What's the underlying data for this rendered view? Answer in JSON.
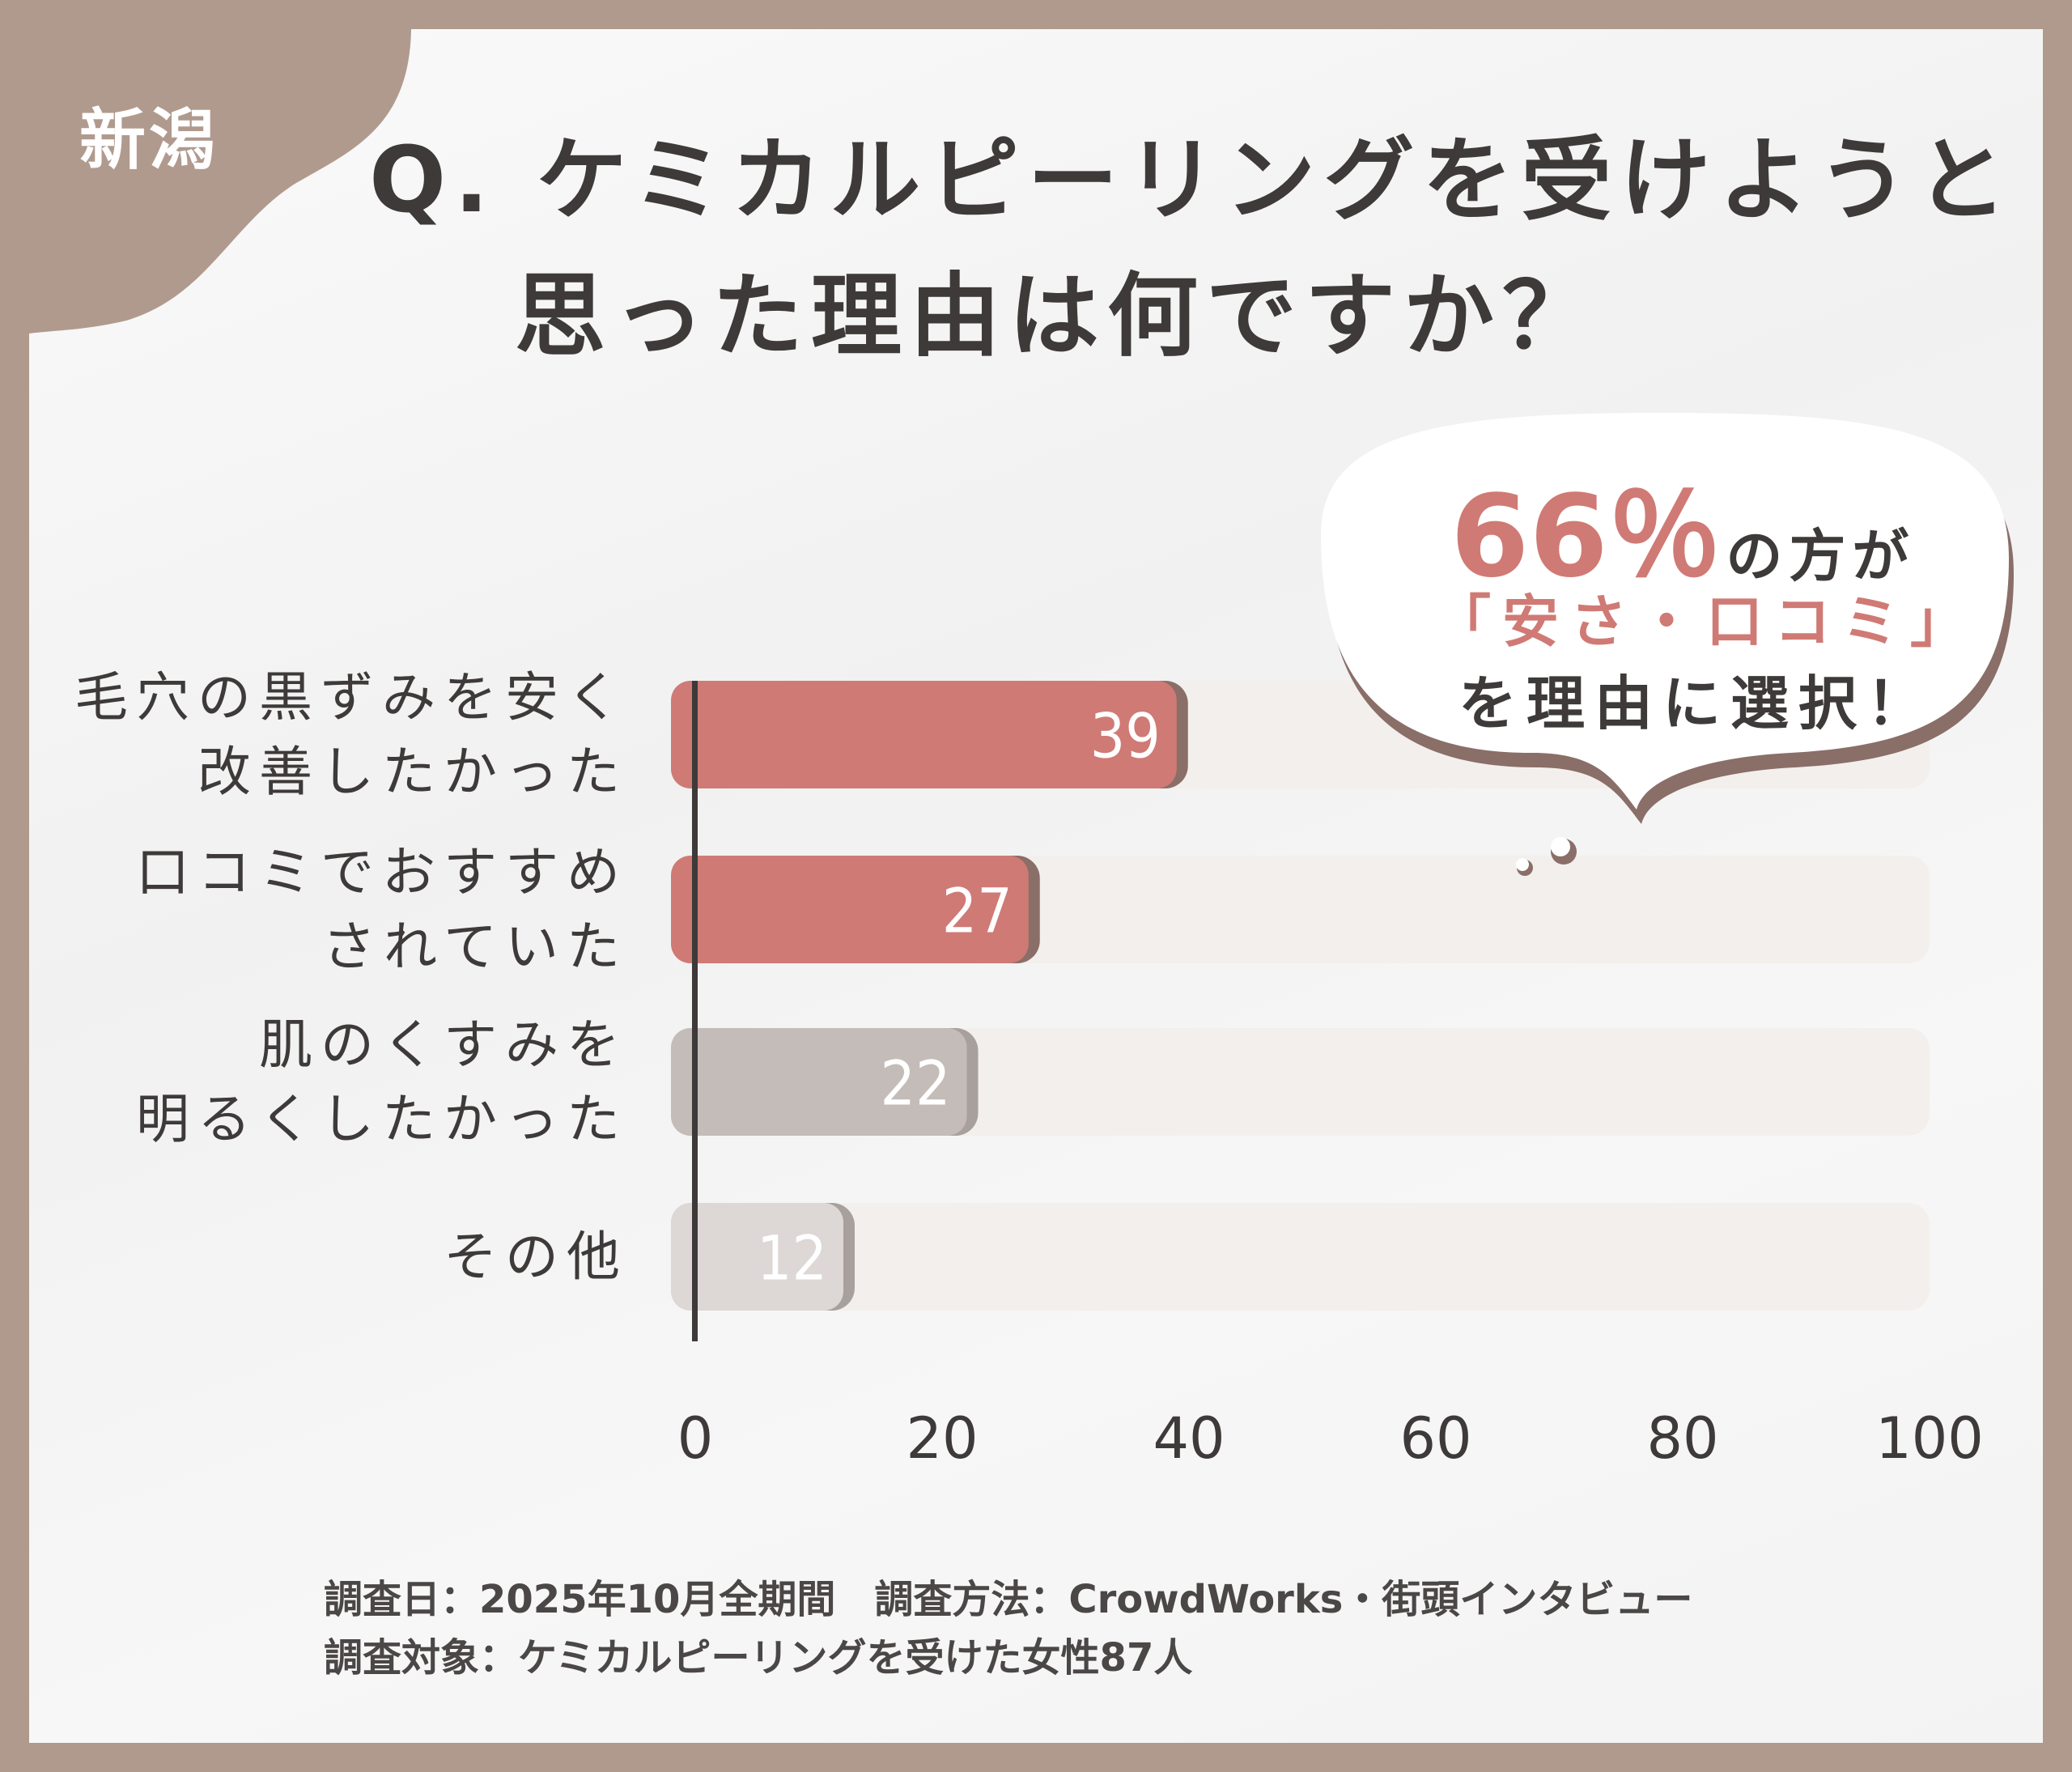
{
  "region_label": "新潟",
  "title": {
    "line1": "Q. ケミカルピーリングを受けようと",
    "line2": "思った理由は何ですか？"
  },
  "callout": {
    "percent": "66％",
    "line1_suffix": "の方が",
    "highlight": "「安さ・口コミ」",
    "line3": "を理由に選択！"
  },
  "colors": {
    "frame": "#b09a8e",
    "accent_red": "#d07a75",
    "bar_gray": "#c4bcb8",
    "bar_light": "#ddd7d6",
    "track": "#f3efec",
    "shadow": "#8a6e68"
  },
  "chart_data": {
    "type": "bar",
    "orientation": "horizontal",
    "categories": [
      "毛穴の黒ずみを安く\n改善したかった",
      "口コミでおすすめ\nされていた",
      "肌のくすみを\n明るくしたかった",
      "その他"
    ],
    "values": [
      39,
      27,
      22,
      12
    ],
    "data_labels": [
      "39",
      "27",
      "22",
      "12"
    ],
    "bar_colors": [
      "#d07a75",
      "#d07a75",
      "#c4bcb8",
      "#ddd7d6"
    ],
    "xlim": [
      0,
      100
    ],
    "xticks": [
      "0",
      "20",
      "40",
      "60",
      "80",
      "100"
    ],
    "grid": false
  },
  "footer": {
    "line1": "調査日：2025年10月全期間　調査方法：CrowdWorks・街頭インタビュー",
    "line2": "調査対象：ケミカルピーリングを受けた女性87人"
  }
}
